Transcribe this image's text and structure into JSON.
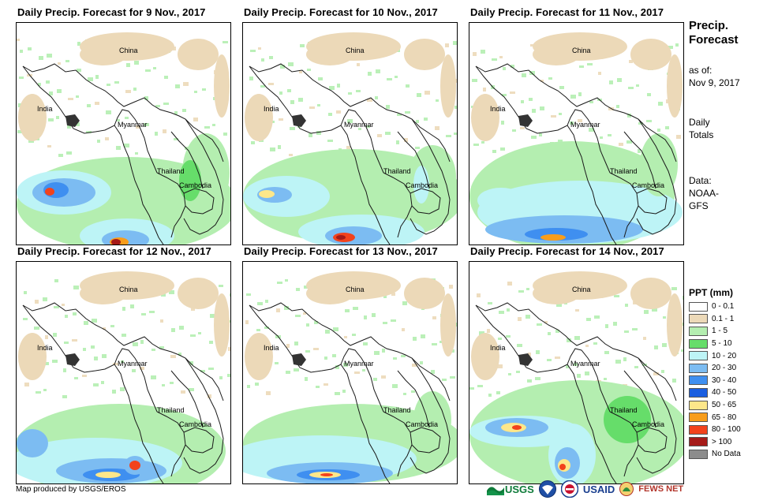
{
  "panels": [
    {
      "title": "Daily Precip. Forecast for 9 Nov., 2017"
    },
    {
      "title": "Daily Precip. Forecast for 10 Nov., 2017"
    },
    {
      "title": "Daily Precip. Forecast for 11 Nov., 2017"
    },
    {
      "title": "Daily Precip. Forecast for 12 Nov., 2017"
    },
    {
      "title": "Daily Precip. Forecast for 13 Nov., 2017"
    },
    {
      "title": "Daily Precip. Forecast for 14 Nov., 2017"
    }
  ],
  "places": {
    "china": "China",
    "india": "India",
    "myanmar": "Myanmar",
    "thailand": "Thailand",
    "cambodia": "Cambodia"
  },
  "sidebar": {
    "title_line1": "Precip.",
    "title_line2": "Forecast",
    "asof_line1": "as of:",
    "asof_line2": "Nov 9, 2017",
    "totals_line1": "Daily",
    "totals_line2": "Totals",
    "data_line1": "Data:",
    "data_line2": "NOAA-",
    "data_line3": "GFS"
  },
  "legend": {
    "title": "PPT (mm)",
    "items": [
      {
        "label": "0 - 0.1",
        "color": "#ffffff"
      },
      {
        "label": "0.1 - 1",
        "color": "#ecd9b8"
      },
      {
        "label": "1 - 5",
        "color": "#b4eeb0"
      },
      {
        "label": "5 - 10",
        "color": "#66dd6a"
      },
      {
        "label": "10 - 20",
        "color": "#bdf4f6"
      },
      {
        "label": "20 - 30",
        "color": "#7cbcf2"
      },
      {
        "label": "30 - 40",
        "color": "#3f8ff0"
      },
      {
        "label": "40 - 50",
        "color": "#1a5ee0"
      },
      {
        "label": "50 - 65",
        "color": "#fde78a"
      },
      {
        "label": "65 - 80",
        "color": "#f89d1b"
      },
      {
        "label": "80 - 100",
        "color": "#f2421c"
      },
      {
        "label": "> 100",
        "color": "#a51a18"
      },
      {
        "label": "No Data",
        "color": "#8c8c8c"
      }
    ]
  },
  "credit": "Map produced by USGS/EROS",
  "logos": {
    "usgs": "USGS",
    "usaid": "USAID",
    "fews": "FEWS NET"
  }
}
